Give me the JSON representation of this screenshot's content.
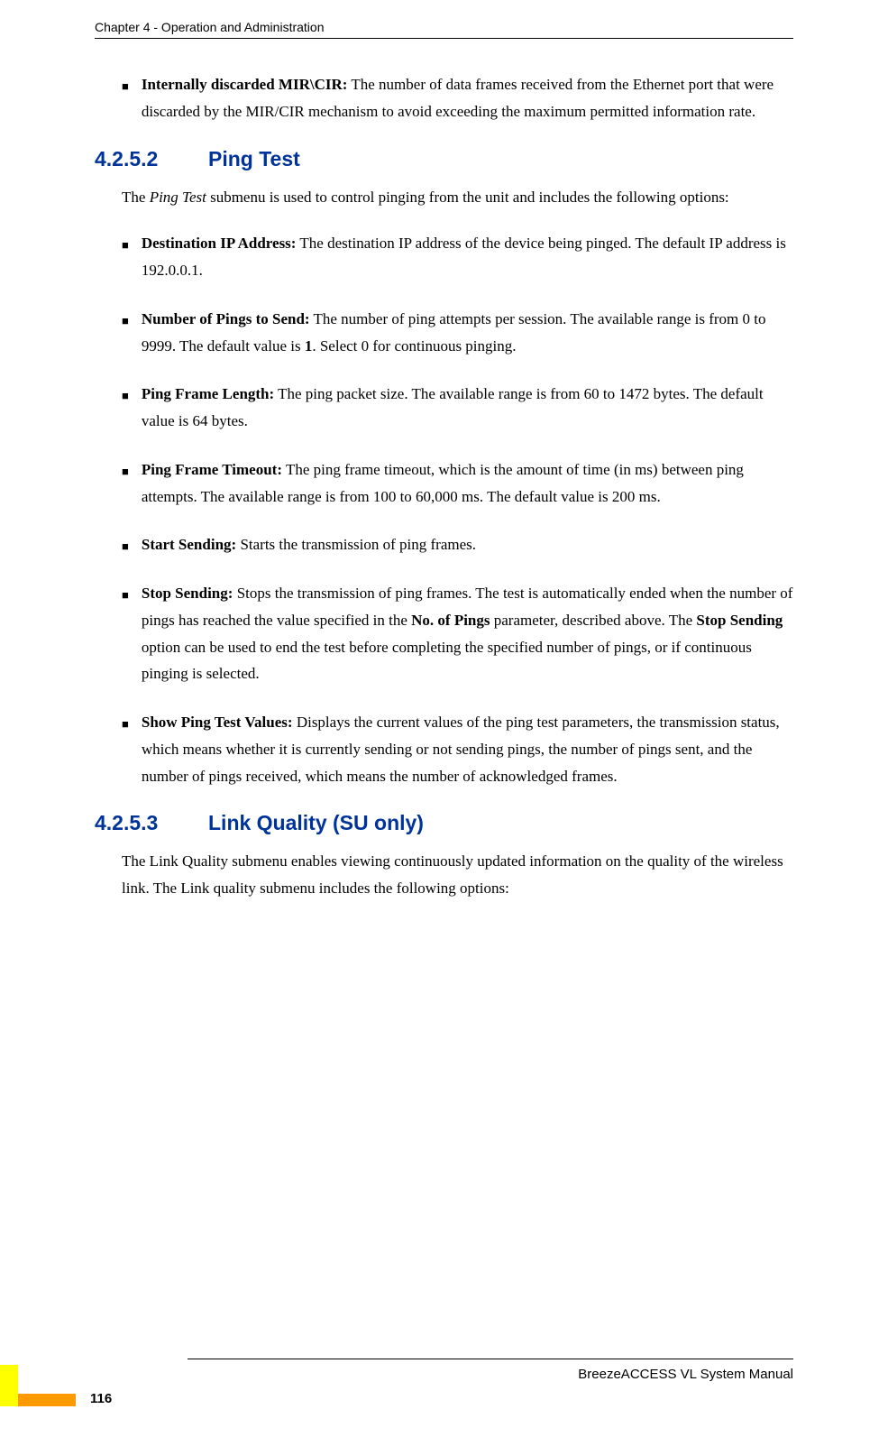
{
  "header": "Chapter 4 - Operation and Administration",
  "items_top": [
    {
      "label": "Internally discarded MIR\\CIR:",
      "text": " The number of data frames received from the Ethernet port that were discarded by the MIR/CIR mechanism to avoid exceeding the maximum permitted information rate."
    }
  ],
  "section1": {
    "number": "4.2.5.2",
    "title": "Ping Test"
  },
  "intro1_a": "The ",
  "intro1_b_italic": "Ping Test",
  "intro1_c": " submenu is used to control pinging from the unit and includes the following options:",
  "items_ping": [
    {
      "label": "Destination IP Address:",
      "text": " The destination IP address of the device being pinged. The default IP address is 192.0.0.1."
    },
    {
      "label": "Number of Pings to Send:",
      "text_a": " The number of ping attempts per session. The available range is from 0 to 9999. The default value is ",
      "bold_mid": "1",
      "text_b": ". Select 0 for continuous pinging."
    },
    {
      "label": "Ping Frame Length:",
      "text": " The ping packet size. The available range is from 60 to 1472 bytes. The default value is 64 bytes."
    },
    {
      "label": "Ping Frame Timeout:",
      "text": " The ping frame timeout, which is the amount of time (in ms) between ping attempts. The available range is from 100 to 60,000 ms. The default value is 200 ms."
    },
    {
      "label": "Start Sending:",
      "text": " Starts the transmission of ping frames."
    },
    {
      "label": "Stop Sending:",
      "text_a": " Stops the transmission of ping frames. The test is automatically ended when the number of pings has reached the value specified in the ",
      "bold_mid": "No. of Pings",
      "text_b": " parameter, described above. The ",
      "bold_mid2": "Stop Sending",
      "text_c": " option can be used to end the test before completing the specified number of pings, or if continuous pinging is selected."
    },
    {
      "label": "Show Ping Test Values:",
      "text": " Displays the current values of the ping test parameters, the transmission status, which means whether it is currently sending or not sending pings, the number of pings sent, and the number of pings received, which means the number of acknowledged frames."
    }
  ],
  "section2": {
    "number": "4.2.5.3",
    "title": "Link Quality (SU only)"
  },
  "intro2": "The Link Quality submenu enables viewing continuously updated information on the quality of the wireless link. The Link quality submenu includes the following options:",
  "footer": {
    "manual": "BreezeACCESS VL System Manual",
    "page": "116"
  },
  "colors": {
    "heading": "#003399",
    "yellow": "#ffff00",
    "orange": "#ff9900"
  }
}
